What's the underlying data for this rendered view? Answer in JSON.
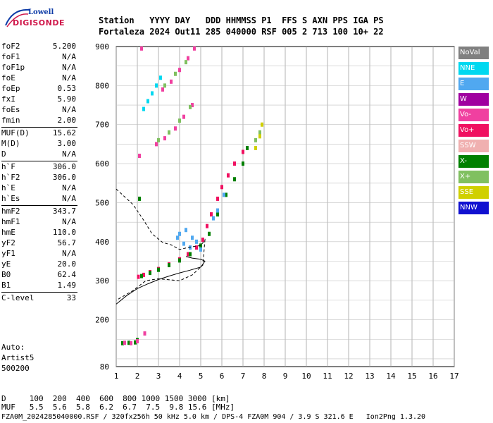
{
  "logo": {
    "line1": "Lowell",
    "line2": "DIGISONDE"
  },
  "header": {
    "line1": "Station   YYYY DAY   DDD HHMMSS P1  FFS S AXN PPS IGA PS",
    "line2": "Fortaleza 2024 Out11 285 040000 RSF 005 2 713 100 10+ 22"
  },
  "params": [
    {
      "label": "foF2",
      "value": "5.200"
    },
    {
      "label": "foF1",
      "value": "N/A"
    },
    {
      "label": "foF1p",
      "value": "N/A"
    },
    {
      "label": "foE",
      "value": "N/A"
    },
    {
      "label": "foEp",
      "value": "0.53"
    },
    {
      "label": "fxI",
      "value": "5.90"
    },
    {
      "label": "foEs",
      "value": "N/A"
    },
    {
      "label": "fmin",
      "value": "2.00"
    },
    {
      "label": "MUF(D)",
      "value": "15.62",
      "sep": true
    },
    {
      "label": "M(D)",
      "value": "3.00"
    },
    {
      "label": "D",
      "value": "N/A"
    },
    {
      "label": "h`F",
      "value": "306.0",
      "sep": true
    },
    {
      "label": "h`F2",
      "value": "306.0"
    },
    {
      "label": "h`E",
      "value": "N/A"
    },
    {
      "label": "h`Es",
      "value": "N/A"
    },
    {
      "label": "hmF2",
      "value": "343.7",
      "sep": true
    },
    {
      "label": "hmF1",
      "value": "N/A"
    },
    {
      "label": "hmE",
      "value": "110.0"
    },
    {
      "label": "yF2",
      "value": "56.7"
    },
    {
      "label": "yF1",
      "value": "N/A"
    },
    {
      "label": "yE",
      "value": "20.0"
    },
    {
      "label": "B0",
      "value": "62.4"
    },
    {
      "label": "B1",
      "value": "1.49"
    },
    {
      "label": "C-level",
      "value": "33",
      "sep": true
    }
  ],
  "auto": {
    "line1": "Auto:",
    "line2": "Artist5",
    "line3": "500200"
  },
  "legend": [
    {
      "label": "NoVal",
      "color": "#808080"
    },
    {
      "label": "NNE",
      "color": "#00d8f0"
    },
    {
      "label": "E",
      "color": "#50a8f0"
    },
    {
      "label": "W",
      "color": "#a000a0"
    },
    {
      "label": "Vo-",
      "color": "#f040a0"
    },
    {
      "label": "Vo+",
      "color": "#f01060"
    },
    {
      "label": "SSW",
      "color": "#f0b0b0"
    },
    {
      "label": "X-",
      "color": "#008000"
    },
    {
      "label": "X+",
      "color": "#80c060"
    },
    {
      "label": "SSE",
      "color": "#d0d000"
    },
    {
      "label": "NNW",
      "color": "#1010d0"
    }
  ],
  "footer": {
    "row1": "D     100  200  400  600  800 1000 1500 3000 [km]",
    "row2": "MUF   5.5  5.6  5.8  6.2  6.7  7.5  9.8 15.6 [MHz]",
    "line": "FZA0M_2024285040000.RSF / 320fx256h 50 kHz 5.0 km / DPS-4 FZA0M 904 / 3.9 S 321.6 E   Ion2Png 1.3.20"
  },
  "chart_data": {
    "type": "scatter",
    "x_ticks": [
      "1",
      "2",
      "3",
      "4",
      "5",
      "6",
      "7",
      "8",
      "9",
      "10",
      "11",
      "12",
      "13",
      "14",
      "15",
      "16",
      "17"
    ],
    "y_ticks": [
      "80",
      "200",
      "300",
      "400",
      "500",
      "600",
      "700",
      "800",
      "900"
    ],
    "xlim": [
      1,
      17
    ],
    "ylim": [
      80,
      900
    ],
    "grid": true,
    "series": [
      {
        "color_key": "Vo+",
        "points": [
          [
            2.05,
            310
          ],
          [
            2.3,
            315
          ],
          [
            2.6,
            322
          ],
          [
            3.0,
            330
          ],
          [
            3.5,
            342
          ],
          [
            4.0,
            355
          ],
          [
            4.4,
            368
          ],
          [
            4.8,
            385
          ],
          [
            5.1,
            405
          ],
          [
            5.3,
            440
          ],
          [
            5.5,
            470
          ],
          [
            5.8,
            510
          ],
          [
            6.0,
            540
          ],
          [
            6.3,
            570
          ],
          [
            6.6,
            600
          ],
          [
            7.0,
            630
          ]
        ]
      },
      {
        "color_key": "X-",
        "points": [
          [
            2.2,
            312
          ],
          [
            2.6,
            320
          ],
          [
            3.0,
            328
          ],
          [
            3.5,
            340
          ],
          [
            4.0,
            352
          ],
          [
            4.5,
            368
          ],
          [
            5.0,
            390
          ],
          [
            5.4,
            420
          ],
          [
            5.8,
            470
          ],
          [
            6.2,
            520
          ],
          [
            6.6,
            560
          ],
          [
            7.0,
            600
          ],
          [
            7.2,
            640
          ]
        ]
      },
      {
        "color_key": "E",
        "points": [
          [
            4.0,
            420
          ],
          [
            4.3,
            430
          ],
          [
            4.6,
            410
          ],
          [
            4.8,
            400
          ],
          [
            5.0,
            380
          ],
          [
            4.2,
            395
          ],
          [
            4.5,
            385
          ],
          [
            3.9,
            410
          ],
          [
            5.8,
            480
          ],
          [
            6.1,
            520
          ],
          [
            5.6,
            460
          ]
        ]
      },
      {
        "color_key": "Vo-",
        "points": [
          [
            2.9,
            650
          ],
          [
            3.3,
            665
          ],
          [
            3.8,
            690
          ],
          [
            4.2,
            720
          ],
          [
            4.6,
            750
          ],
          [
            3.2,
            790
          ],
          [
            3.6,
            810
          ],
          [
            4.0,
            840
          ],
          [
            4.4,
            870
          ],
          [
            4.7,
            895
          ],
          [
            2.1,
            620
          ],
          [
            2.2,
            895
          ]
        ]
      },
      {
        "color_key": "X+",
        "points": [
          [
            3.0,
            660
          ],
          [
            3.5,
            680
          ],
          [
            4.0,
            710
          ],
          [
            4.5,
            745
          ],
          [
            3.3,
            800
          ],
          [
            3.8,
            830
          ],
          [
            4.3,
            860
          ],
          [
            7.6,
            660
          ],
          [
            7.8,
            680
          ]
        ]
      },
      {
        "color_key": "SSE",
        "points": [
          [
            7.6,
            640
          ],
          [
            7.8,
            670
          ],
          [
            7.9,
            700
          ]
        ]
      },
      {
        "color_key": "NNE",
        "points": [
          [
            2.5,
            760
          ],
          [
            2.7,
            780
          ],
          [
            2.9,
            800
          ],
          [
            3.1,
            820
          ],
          [
            2.3,
            740
          ]
        ]
      },
      {
        "color_key": "X-",
        "points": [
          [
            1.3,
            140
          ],
          [
            1.6,
            141
          ],
          [
            1.9,
            142
          ],
          [
            2.0,
            148
          ],
          [
            2.1,
            510
          ]
        ]
      },
      {
        "color_key": "Vo-",
        "points": [
          [
            1.4,
            141
          ],
          [
            1.7,
            140
          ],
          [
            2.0,
            145
          ],
          [
            2.35,
            165
          ]
        ]
      }
    ],
    "profile_solid": [
      [
        1,
        240
      ],
      [
        1.5,
        262
      ],
      [
        2,
        280
      ],
      [
        2.5,
        292
      ],
      [
        3,
        303
      ],
      [
        3.5,
        312
      ],
      [
        4,
        320
      ],
      [
        4.5,
        327
      ],
      [
        5,
        335
      ],
      [
        5.2,
        350
      ],
      [
        5.0,
        355
      ],
      [
        4.6,
        358
      ],
      [
        4.3,
        362
      ]
    ],
    "profile_dashed": [
      [
        1,
        535
      ],
      [
        1.8,
        495
      ],
      [
        2.3,
        455
      ],
      [
        2.7,
        420
      ],
      [
        3.2,
        398
      ],
      [
        3.6,
        392
      ],
      [
        4.0,
        380
      ],
      [
        4.4,
        385
      ],
      [
        4.7,
        388
      ],
      [
        5.0,
        390
      ],
      [
        5.2,
        405
      ],
      [
        5.1,
        340
      ],
      [
        4.6,
        315
      ],
      [
        4.0,
        300
      ],
      [
        3.0,
        305
      ],
      [
        2.4,
        300
      ],
      [
        1.8,
        275
      ],
      [
        1,
        250
      ]
    ]
  }
}
